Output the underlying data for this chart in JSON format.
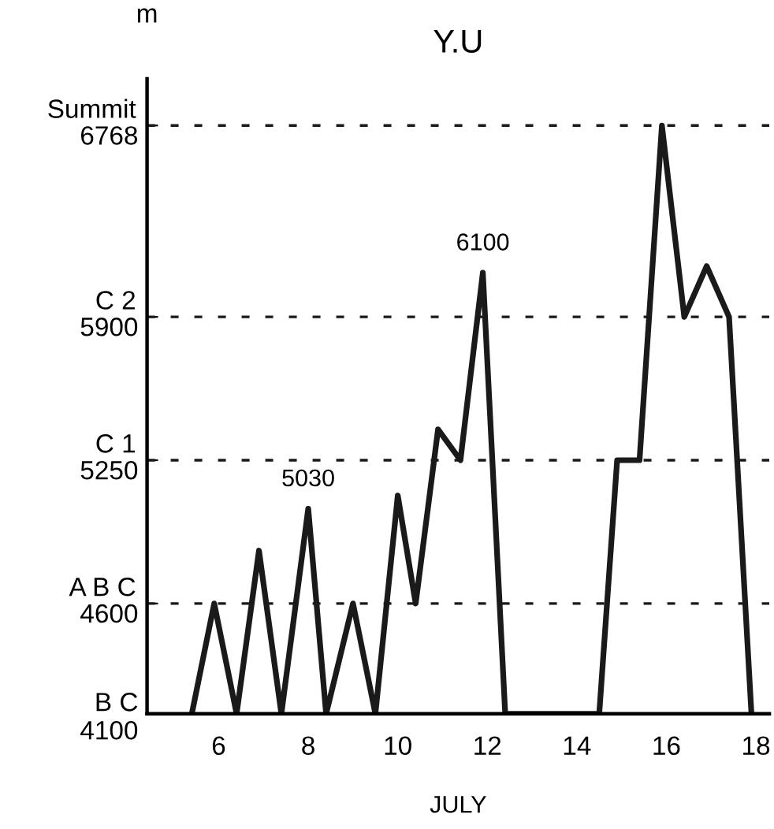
{
  "chart_data": {
    "type": "line",
    "title": "Y.U",
    "xlabel": "JULY",
    "ylabel": "m",
    "x": [
      5.4,
      5.9,
      6.4,
      6.9,
      7.4,
      8.0,
      8.4,
      9.0,
      9.5,
      10.0,
      10.4,
      10.9,
      11.4,
      11.9,
      12.4,
      14.5,
      14.9,
      15.4,
      15.9,
      16.4,
      16.9,
      17.4,
      17.9
    ],
    "series": [
      {
        "color": "#1a1a1a",
        "values": [
          4100,
          4600,
          4100,
          4840,
          4100,
          5030,
          4100,
          4600,
          4100,
          5090,
          4600,
          5390,
          5250,
          6100,
          4100,
          4100,
          5250,
          5250,
          6768,
          5900,
          6130,
          5900,
          4100
        ]
      }
    ],
    "xlim": [
      4.4,
      18.3
    ],
    "ylim": [
      4100,
      6980
    ],
    "xticks": [
      6,
      8,
      10,
      12,
      14,
      16,
      18
    ],
    "yticks": [
      {
        "value": 4100,
        "label": "B C\n4100"
      },
      4600,
      5250,
      5900,
      6768
    ],
    "ref_lines": [
      {
        "axis": "y",
        "value": 4600,
        "label": "A B C",
        "line_style": "dashed"
      },
      {
        "axis": "y",
        "value": 5250,
        "label": "C 1",
        "line_style": "dashed"
      },
      {
        "axis": "y",
        "value": 5900,
        "label": "C 2",
        "line_style": "dashed"
      },
      {
        "axis": "y",
        "value": 6768,
        "label": "Summit",
        "line_style": "dashed"
      }
    ],
    "marker": "none",
    "line_style": "solid",
    "annotations": [
      {
        "text": "5030",
        "x": 8.0,
        "y": 5030
      },
      {
        "text": "6100",
        "x": 11.9,
        "y": 6100
      }
    ]
  }
}
